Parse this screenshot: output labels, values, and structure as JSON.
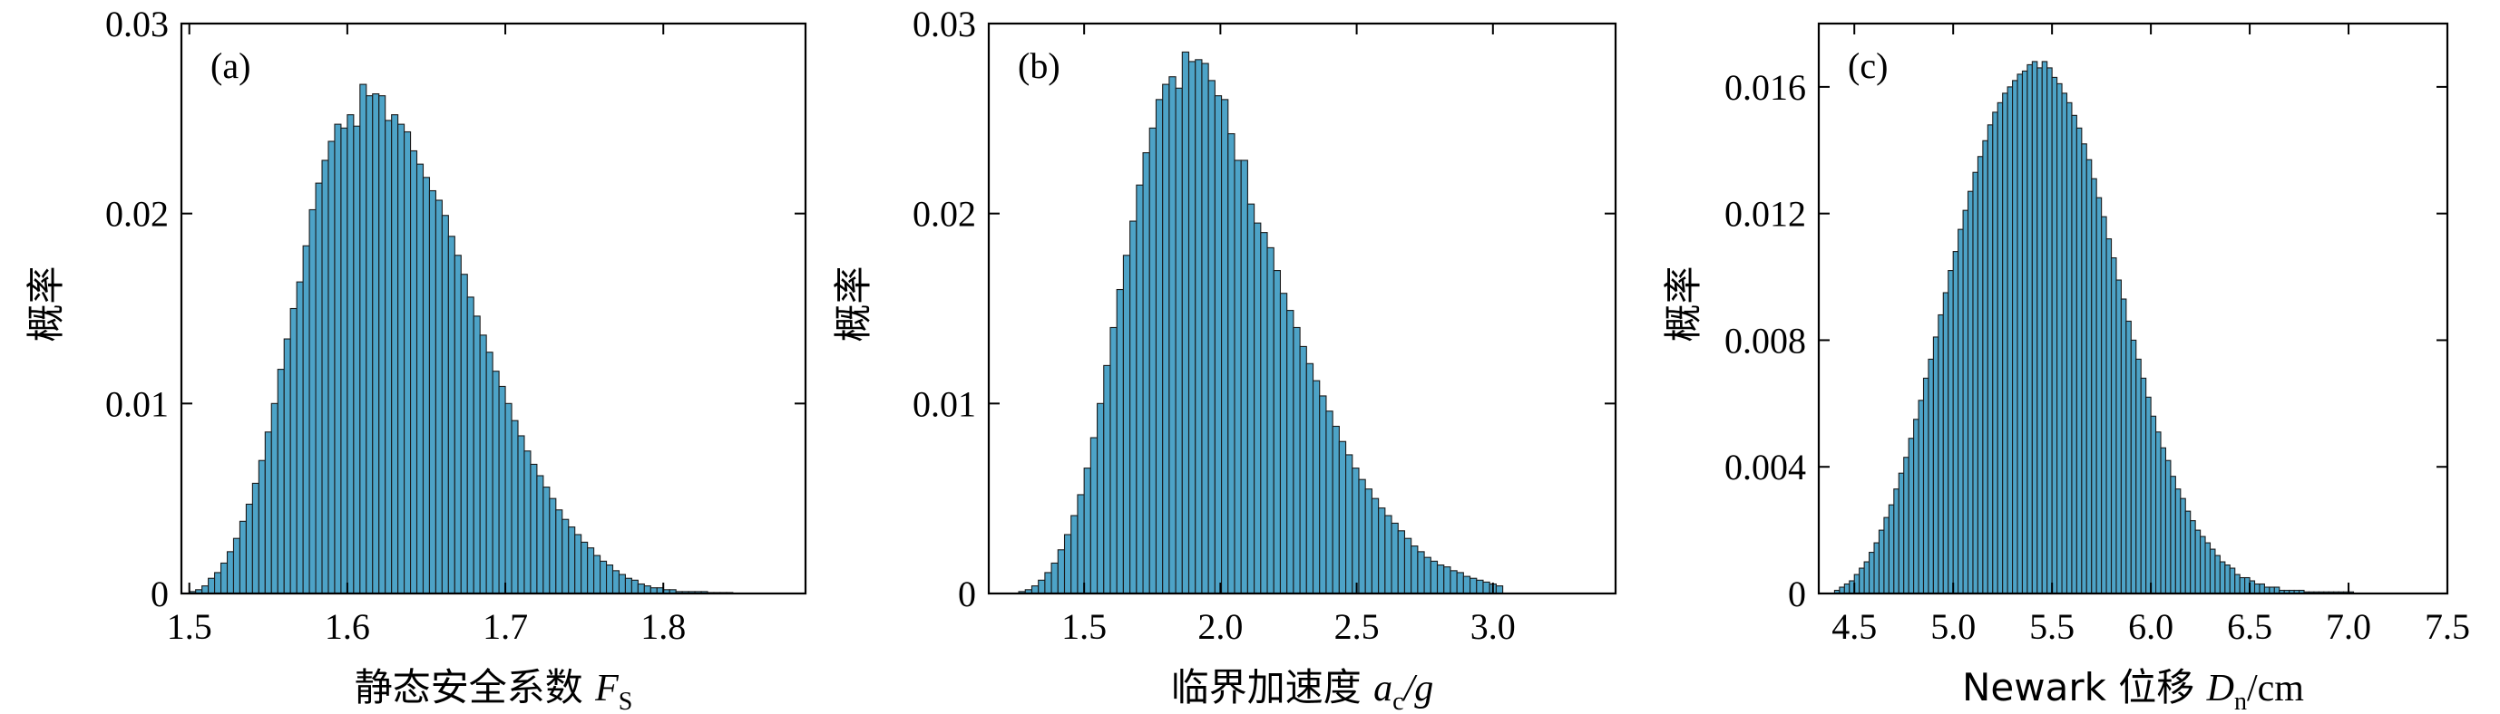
{
  "figure": {
    "background": "#ffffff",
    "bar_color": "#4da3c7",
    "bar_edge": "#1a1a1a"
  },
  "chart_data": [
    {
      "type": "bar",
      "panel_label": "(a)",
      "xlabel": "静态安全系数 ",
      "xlabel_symbol": "F",
      "xlabel_sub": "S",
      "xlabel_suffix": "",
      "ylabel": "概率",
      "xlim": [
        1.495,
        1.89
      ],
      "ylim": [
        0,
        0.03
      ],
      "xticks": [
        1.5,
        1.6,
        1.7,
        1.8
      ],
      "xtick_labels": [
        "1.5",
        "1.6",
        "1.7",
        "1.8"
      ],
      "yticks": [
        0,
        0.01,
        0.02,
        0.03
      ],
      "ytick_labels": [
        "0",
        "0.01",
        "0.02",
        "0.03"
      ],
      "bin_start": 1.5,
      "bin_width": 0.004,
      "values": [
        0.0001,
        0.0002,
        0.0004,
        0.0008,
        0.0011,
        0.0016,
        0.0022,
        0.0029,
        0.0038,
        0.0047,
        0.0058,
        0.007,
        0.0085,
        0.01,
        0.0118,
        0.0134,
        0.015,
        0.0164,
        0.0183,
        0.0202,
        0.0216,
        0.0228,
        0.0238,
        0.0247,
        0.0245,
        0.0252,
        0.0246,
        0.0268,
        0.0262,
        0.0263,
        0.0262,
        0.0249,
        0.0252,
        0.0247,
        0.0243,
        0.0233,
        0.0226,
        0.0219,
        0.0212,
        0.0207,
        0.0199,
        0.0188,
        0.0178,
        0.0168,
        0.0156,
        0.0146,
        0.0136,
        0.0127,
        0.0117,
        0.0109,
        0.01,
        0.0091,
        0.0083,
        0.0075,
        0.0068,
        0.0062,
        0.0056,
        0.005,
        0.0044,
        0.0039,
        0.0035,
        0.0031,
        0.0027,
        0.0024,
        0.002,
        0.0017,
        0.0015,
        0.0012,
        0.001,
        0.0008,
        0.0007,
        0.0005,
        0.0004,
        0.0003,
        0.0003,
        0.0002,
        0.0002,
        0.0001,
        0.0001,
        0.0001,
        0.0001,
        0.0001,
        5e-05,
        5e-05,
        5e-05,
        5e-05
      ]
    },
    {
      "type": "bar",
      "panel_label": "(b)",
      "xlabel": "临界加速度 ",
      "xlabel_symbol": "a",
      "xlabel_sub": "c",
      "xlabel_suffix": "/g",
      "ylabel": "概率",
      "xlim": [
        1.15,
        3.45
      ],
      "ylim": [
        0,
        0.03
      ],
      "xticks": [
        1.5,
        2.0,
        2.5,
        3.0
      ],
      "xtick_labels": [
        "1.5",
        "2.0",
        "2.5",
        "3.0"
      ],
      "yticks": [
        0,
        0.01,
        0.02,
        0.03
      ],
      "ytick_labels": [
        "0",
        "0.01",
        "0.02",
        "0.03"
      ],
      "bin_start": 1.26,
      "bin_width": 0.024,
      "values": [
        0.0001,
        0.0002,
        0.0004,
        0.0007,
        0.0011,
        0.0016,
        0.0023,
        0.0031,
        0.0041,
        0.0052,
        0.0066,
        0.0082,
        0.01,
        0.012,
        0.014,
        0.016,
        0.0178,
        0.0196,
        0.0215,
        0.0232,
        0.0245,
        0.026,
        0.0268,
        0.0272,
        0.0266,
        0.0285,
        0.028,
        0.0281,
        0.0279,
        0.027,
        0.0262,
        0.026,
        0.0242,
        0.0228,
        0.0228,
        0.0205,
        0.0195,
        0.019,
        0.0182,
        0.017,
        0.0158,
        0.0149,
        0.014,
        0.013,
        0.0121,
        0.0112,
        0.0104,
        0.0096,
        0.0088,
        0.008,
        0.0073,
        0.0066,
        0.006,
        0.0055,
        0.005,
        0.0045,
        0.0041,
        0.0037,
        0.0033,
        0.0029,
        0.0025,
        0.0022,
        0.0019,
        0.0017,
        0.0015,
        0.0014,
        0.0012,
        0.0011,
        0.0009,
        0.0008,
        0.0007,
        0.0006,
        0.0005,
        0.0004
      ]
    },
    {
      "type": "bar",
      "panel_label": "(c)",
      "xlabel": "Newark 位移 ",
      "xlabel_symbol": "D",
      "xlabel_sub": "n",
      "xlabel_suffix": "/cm",
      "ylabel": "概率",
      "xlim": [
        4.32,
        7.5
      ],
      "ylim": [
        0,
        0.018
      ],
      "xticks": [
        4.5,
        5.0,
        5.5,
        6.0,
        6.5,
        7.0,
        7.5
      ],
      "xtick_labels": [
        "4.5",
        "5.0",
        "5.5",
        "6.0",
        "6.5",
        "7.0",
        "7.5"
      ],
      "yticks": [
        0,
        0.004,
        0.008,
        0.012,
        0.016
      ],
      "ytick_labels": [
        "0",
        "0.004",
        "0.008",
        "0.012",
        "0.016"
      ],
      "bin_start": 4.4,
      "bin_width": 0.025,
      "values": [
        0.0001,
        0.0002,
        0.0003,
        0.0004,
        0.0006,
        0.0008,
        0.001,
        0.0013,
        0.0016,
        0.002,
        0.0024,
        0.0028,
        0.0033,
        0.0038,
        0.0043,
        0.0049,
        0.0055,
        0.0061,
        0.0068,
        0.0074,
        0.0081,
        0.0088,
        0.0095,
        0.0102,
        0.0108,
        0.0115,
        0.0121,
        0.0127,
        0.0133,
        0.0138,
        0.0143,
        0.0148,
        0.0152,
        0.0155,
        0.0158,
        0.016,
        0.0162,
        0.0164,
        0.0165,
        0.0167,
        0.0168,
        0.0166,
        0.0168,
        0.0166,
        0.0163,
        0.0161,
        0.0158,
        0.0155,
        0.0151,
        0.0147,
        0.0142,
        0.0137,
        0.0131,
        0.0125,
        0.0119,
        0.0112,
        0.0106,
        0.0099,
        0.0093,
        0.0086,
        0.008,
        0.0074,
        0.0068,
        0.0062,
        0.0056,
        0.0051,
        0.0046,
        0.0042,
        0.0037,
        0.0033,
        0.003,
        0.0026,
        0.0023,
        0.002,
        0.0018,
        0.0016,
        0.0014,
        0.0012,
        0.001,
        0.0009,
        0.0008,
        0.0006,
        0.0005,
        0.0005,
        0.0004,
        0.0003,
        0.0003,
        0.0002,
        0.0002,
        0.0002,
        0.0001,
        0.0001,
        0.0001,
        0.0001,
        0.0001,
        5e-05,
        5e-05,
        5e-05,
        5e-05,
        5e-05,
        5e-05,
        5e-05,
        5e-05,
        5e-05,
        5e-05
      ]
    }
  ]
}
